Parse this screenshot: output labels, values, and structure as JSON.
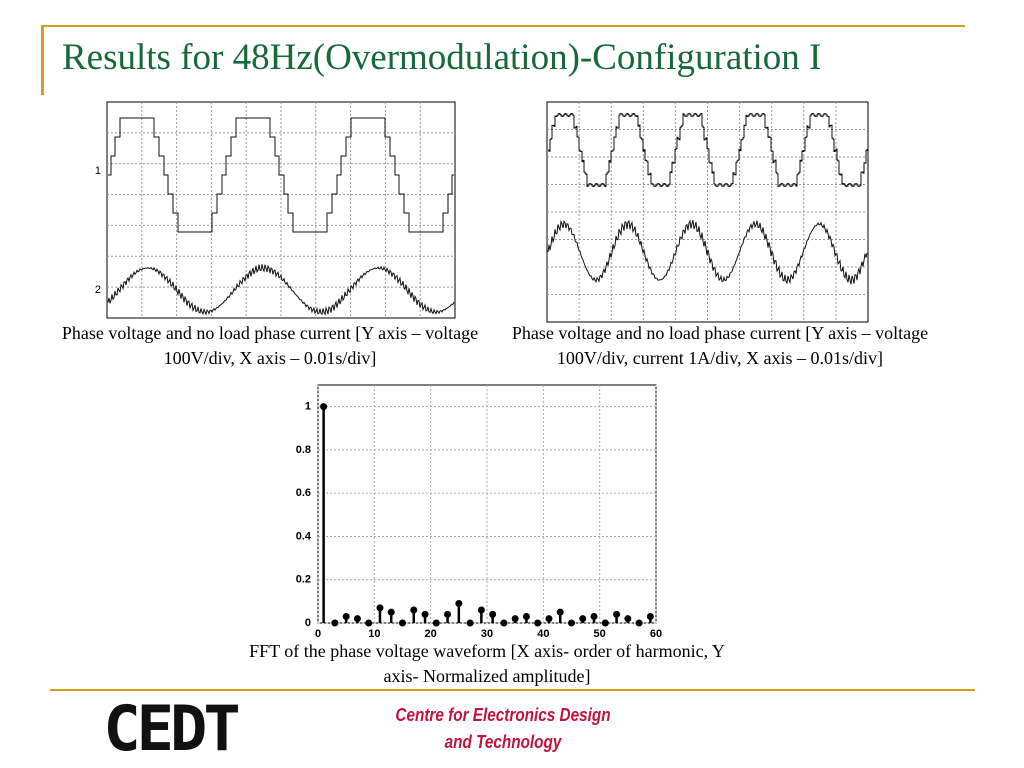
{
  "header": {
    "title": "Results for 48Hz(Overmodulation)-Configuration I"
  },
  "figures": [
    {
      "channel_labels": [
        "1",
        "2"
      ],
      "caption": "Phase voltage and no load phase current [Y axis – voltage 100V/div, X axis – 0.01s/div]"
    },
    {
      "caption": "Phase voltage and no load phase current [Y axis – voltage 100V/div, current 1A/div, X axis – 0.01s/div]"
    }
  ],
  "chart_data": {
    "type": "stem",
    "caption": "FFT of the phase voltage waveform [X axis- order of harmonic, Y axis- Normalized amplitude]",
    "x": [
      1,
      3,
      5,
      7,
      9,
      11,
      13,
      15,
      17,
      19,
      21,
      23,
      25,
      27,
      29,
      31,
      33,
      35,
      37,
      39,
      41,
      43,
      45,
      47,
      49,
      51,
      53,
      55,
      57,
      59
    ],
    "values": [
      1,
      0,
      0.03,
      0.02,
      0,
      0.07,
      0.05,
      0,
      0.06,
      0.04,
      0,
      0.04,
      0.09,
      0,
      0.06,
      0.04,
      0,
      0.02,
      0.03,
      0,
      0.02,
      0.05,
      0,
      0.02,
      0.03,
      0,
      0.04,
      0.02,
      0,
      0.03
    ],
    "color": "#000000",
    "xlim": [
      0,
      60
    ],
    "xticks": [
      0,
      10,
      20,
      30,
      40,
      50,
      60
    ],
    "ylim": [
      0,
      1.1
    ],
    "yticks": [
      0,
      0.2,
      0.4,
      0.6,
      0.8,
      1
    ],
    "grid": true
  },
  "footer": {
    "logo": "CEDT",
    "organization_line1": "Centre for Electronics Design",
    "organization_line2": "and Technology"
  }
}
